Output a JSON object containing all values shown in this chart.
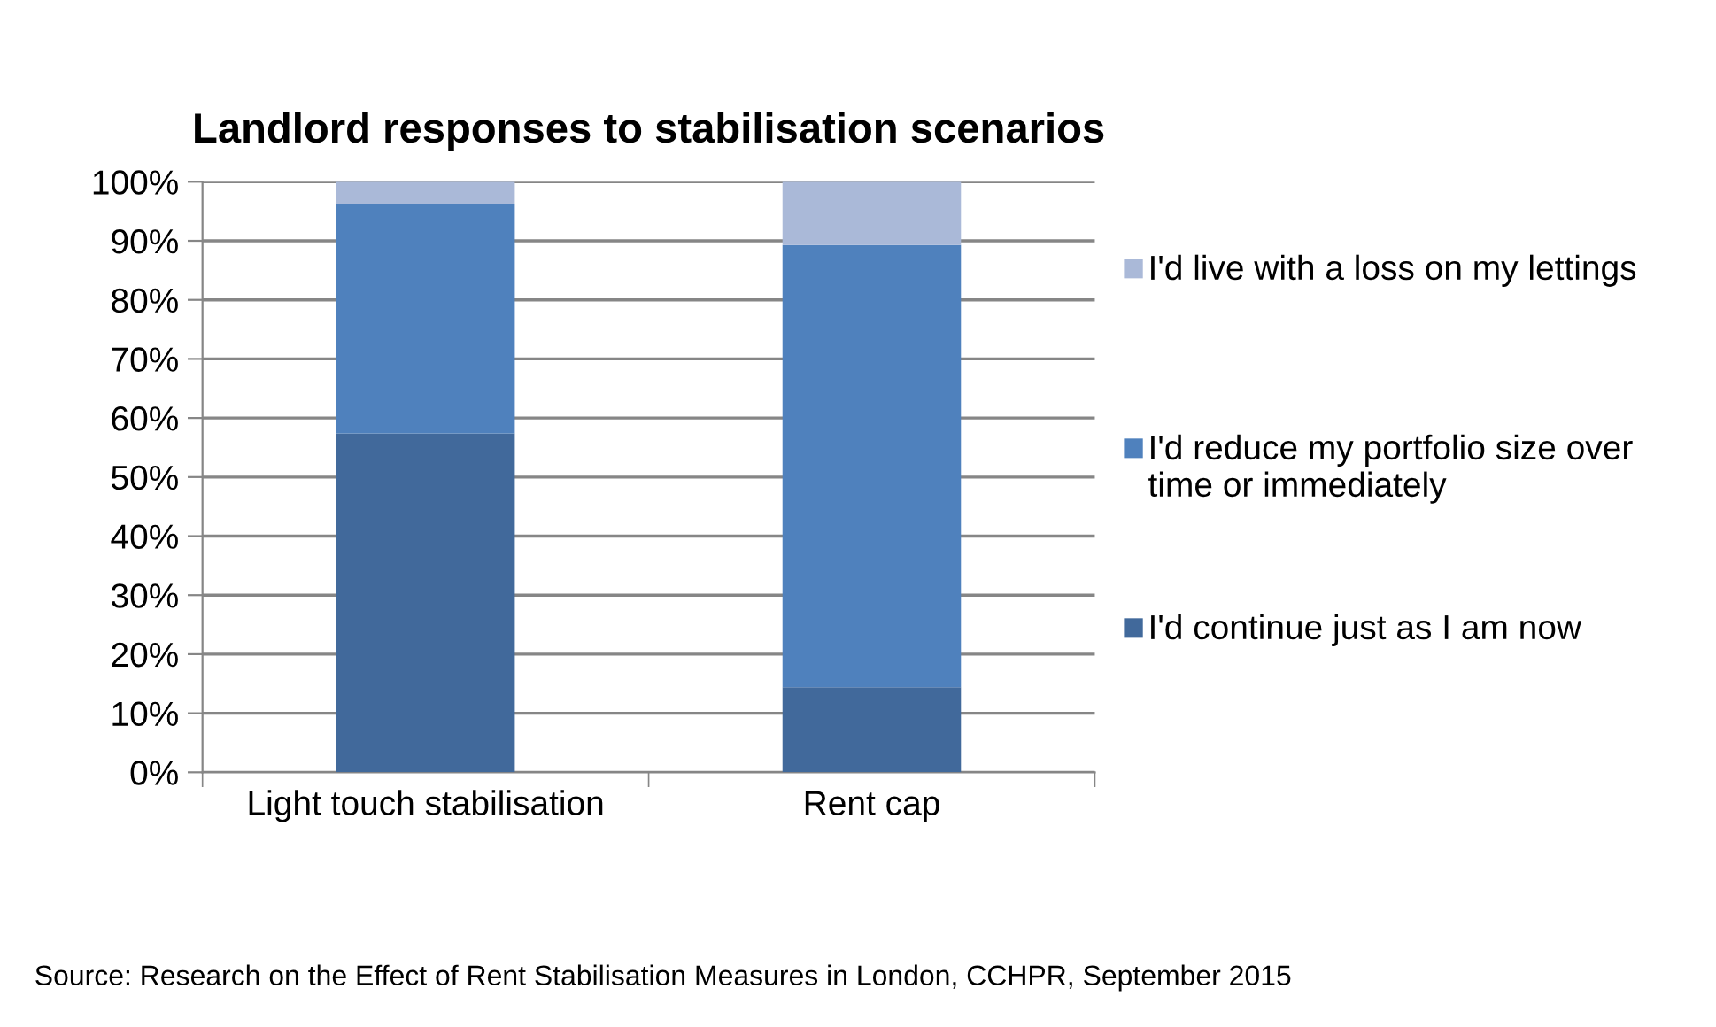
{
  "chart_data": {
    "type": "bar",
    "stacked": true,
    "title": "Landlord responses to stabilisation scenarios",
    "categories": [
      "Light touch stabilisation",
      "Rent cap"
    ],
    "series": [
      {
        "name": "I'd continue just as I am now",
        "color": "#41699b",
        "values": [
          57.4,
          14.4
        ]
      },
      {
        "name": "I'd reduce my portfolio size over time or immediately",
        "color": "#4f81bd",
        "values": [
          38.9,
          74.9
        ]
      },
      {
        "name": "I'd live with a loss on my lettings",
        "color": "#aab9d8",
        "values": [
          3.7,
          10.7
        ]
      }
    ],
    "ylim": [
      0,
      100
    ],
    "yticks": [
      {
        "value": 0,
        "label": "0%"
      },
      {
        "value": 10,
        "label": "10%"
      },
      {
        "value": 20,
        "label": "20%"
      },
      {
        "value": 30,
        "label": "30%"
      },
      {
        "value": 40,
        "label": "40%"
      },
      {
        "value": 50,
        "label": "50%"
      },
      {
        "value": 60,
        "label": "60%"
      },
      {
        "value": 70,
        "label": "70%"
      },
      {
        "value": 80,
        "label": "80%"
      },
      {
        "value": 90,
        "label": "90%"
      },
      {
        "value": 100,
        "label": "100%"
      }
    ],
    "grid": "y",
    "legend": "right",
    "annotations": [
      "Source: Research on the Effect of Rent Stabilisation Measures in London, CCHPR, September 2015"
    ]
  }
}
